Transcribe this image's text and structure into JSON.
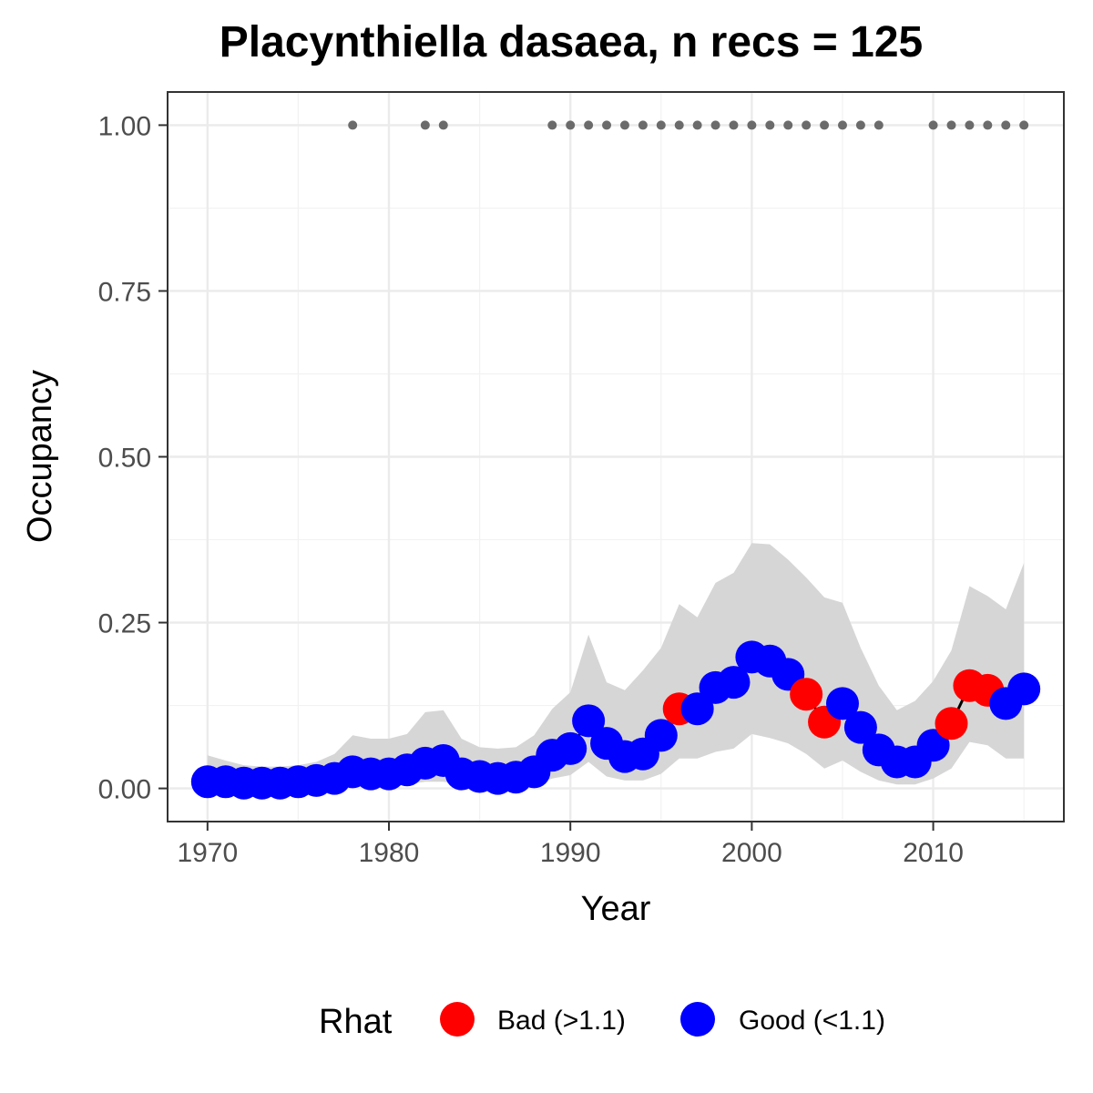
{
  "chart_data": {
    "type": "line",
    "title": "Placynthiella dasaea, n recs = 125",
    "xlabel": "Year",
    "ylabel": "Occupancy",
    "xlim": [
      1967.8,
      2017.2
    ],
    "ylim": [
      -0.05,
      1.05
    ],
    "x_ticks": [
      1970,
      1980,
      1990,
      2000,
      2010
    ],
    "x_tick_labels": [
      "1970",
      "1980",
      "1990",
      "2000",
      "2010"
    ],
    "y_ticks": [
      0,
      0.25,
      0.5,
      0.75,
      1
    ],
    "y_tick_labels": [
      "0.00",
      "0.25",
      "0.50",
      "0.75",
      "1.00"
    ],
    "grid": true,
    "legend_position": "bottom",
    "legend": {
      "title": "Rhat",
      "entries": [
        {
          "key": "bad",
          "label": "Bad (>1.1)",
          "color": "#ff0000"
        },
        {
          "key": "good",
          "label": "Good (<1.1)",
          "color": "#0000ff"
        }
      ]
    },
    "colors": {
      "bad": "#ff0000",
      "good": "#0000ff",
      "ribbon": "#d6d6d6",
      "records": "#6b6b6b",
      "line": "#000000"
    },
    "years": [
      1970,
      1971,
      1972,
      1973,
      1974,
      1975,
      1976,
      1977,
      1978,
      1979,
      1980,
      1981,
      1982,
      1983,
      1984,
      1985,
      1986,
      1987,
      1988,
      1989,
      1990,
      1991,
      1992,
      1993,
      1994,
      1995,
      1996,
      1997,
      1998,
      1999,
      2000,
      2001,
      2002,
      2003,
      2004,
      2005,
      2006,
      2007,
      2008,
      2009,
      2010,
      2011,
      2012,
      2013,
      2014,
      2015
    ],
    "occupancy": [
      0.01,
      0.01,
      0.008,
      0.008,
      0.008,
      0.01,
      0.012,
      0.015,
      0.025,
      0.022,
      0.022,
      0.028,
      0.038,
      0.042,
      0.022,
      0.018,
      0.015,
      0.017,
      0.025,
      0.05,
      0.06,
      0.102,
      0.068,
      0.048,
      0.052,
      0.08,
      0.12,
      0.12,
      0.152,
      0.16,
      0.198,
      0.192,
      0.172,
      0.142,
      0.1,
      0.128,
      0.092,
      0.058,
      0.04,
      0.04,
      0.065,
      0.098,
      0.155,
      0.148,
      0.128,
      0.15
    ],
    "rhat": [
      "good",
      "good",
      "good",
      "good",
      "good",
      "good",
      "good",
      "good",
      "good",
      "good",
      "good",
      "good",
      "good",
      "good",
      "good",
      "good",
      "good",
      "good",
      "good",
      "good",
      "good",
      "good",
      "good",
      "good",
      "good",
      "good",
      "bad",
      "good",
      "good",
      "good",
      "good",
      "good",
      "good",
      "bad",
      "bad",
      "good",
      "good",
      "good",
      "good",
      "good",
      "good",
      "bad",
      "bad",
      "bad",
      "good",
      "good"
    ],
    "ci_upper": [
      0.05,
      0.042,
      0.035,
      0.033,
      0.033,
      0.035,
      0.04,
      0.052,
      0.08,
      0.075,
      0.075,
      0.082,
      0.115,
      0.118,
      0.075,
      0.062,
      0.06,
      0.062,
      0.08,
      0.12,
      0.145,
      0.232,
      0.16,
      0.148,
      0.178,
      0.212,
      0.278,
      0.258,
      0.31,
      0.325,
      0.37,
      0.368,
      0.345,
      0.318,
      0.288,
      0.28,
      0.212,
      0.155,
      0.118,
      0.132,
      0.162,
      0.208,
      0.305,
      0.29,
      0.27,
      0.34
    ],
    "ci_lower": [
      0.002,
      0.002,
      0.001,
      0.001,
      0.001,
      0.002,
      0.002,
      0.003,
      0.006,
      0.005,
      0.005,
      0.006,
      0.01,
      0.01,
      0.005,
      0.004,
      0.003,
      0.004,
      0.006,
      0.015,
      0.02,
      0.04,
      0.018,
      0.012,
      0.012,
      0.022,
      0.045,
      0.045,
      0.055,
      0.06,
      0.082,
      0.076,
      0.068,
      0.052,
      0.03,
      0.042,
      0.025,
      0.012,
      0.006,
      0.006,
      0.015,
      0.03,
      0.07,
      0.065,
      0.045,
      0.045
    ],
    "record_years": [
      1978,
      1982,
      1983,
      1989,
      1990,
      1991,
      1992,
      1993,
      1994,
      1995,
      1996,
      1997,
      1998,
      1999,
      2000,
      2001,
      2002,
      2003,
      2004,
      2005,
      2006,
      2007,
      2010,
      2011,
      2012,
      2013,
      2014,
      2015
    ],
    "record_value": 1.0
  }
}
